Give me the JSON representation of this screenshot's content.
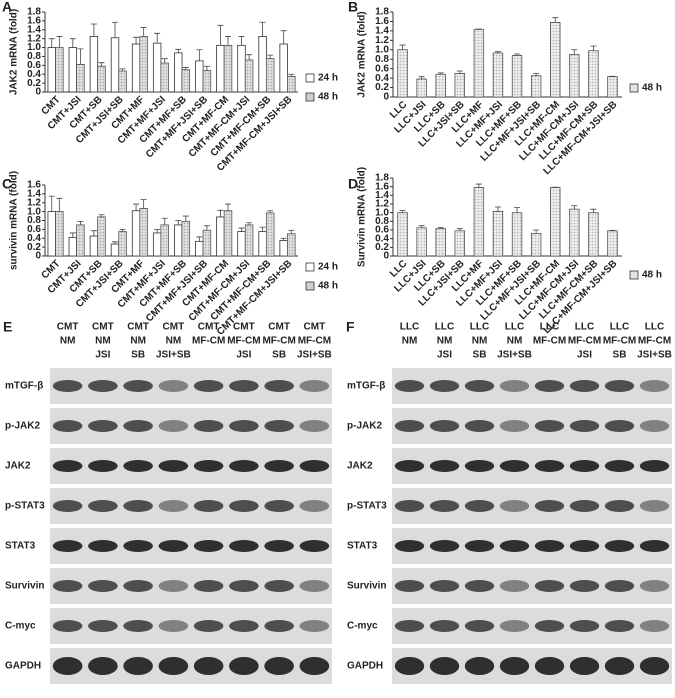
{
  "chart_data": [
    {
      "type": "bar",
      "panel": "A",
      "y_label": "JAK2 mRNA (fold)",
      "categories": [
        "CMT",
        "CMT+JSI",
        "CMT+SB",
        "CMT+JSI+SB",
        "CMT+MF",
        "CMT+MF+JSI",
        "CMT+MF+SB",
        "CMT+MF+JSI+SB",
        "CMT+MF-CM",
        "CMT+MF-CM+JSI",
        "CMT+MF-CM+SB",
        "CMT+MF-CM+JSI+SB"
      ],
      "series": [
        {
          "name": "24 h",
          "color": "#ffffff",
          "values": [
            1.0,
            1.0,
            1.25,
            1.22,
            1.08,
            1.1,
            0.88,
            0.7,
            1.05,
            1.05,
            1.25,
            1.08
          ],
          "errors": [
            0.2,
            0.2,
            0.28,
            0.35,
            0.15,
            0.22,
            0.08,
            0.25,
            0.45,
            0.2,
            0.32,
            0.3
          ]
        },
        {
          "name": "48 h",
          "color": "#cfcfcf",
          "values": [
            1.0,
            0.62,
            0.58,
            0.47,
            1.25,
            0.65,
            0.5,
            0.48,
            1.05,
            0.72,
            0.75,
            0.35
          ],
          "errors": [
            0.25,
            0.35,
            0.08,
            0.05,
            0.2,
            0.1,
            0.05,
            0.1,
            0.2,
            0.12,
            0.08,
            0.05
          ]
        }
      ],
      "ylim": [
        0,
        1.8
      ],
      "yticks": [
        0,
        {
          "value": 0.2,
          "label": "0.2"
        },
        {
          "value": 0.4,
          "label": "0.4"
        },
        {
          "value": 0.6,
          "label": "0.6"
        },
        {
          "value": 0.8,
          "label": "0.8"
        },
        {
          "value": 1,
          "label": "1.0"
        },
        {
          "value": 1.2,
          "label": "1.2"
        },
        {
          "value": 1.4,
          "label": "1.4"
        },
        {
          "value": 1.6,
          "label": "1.6"
        },
        {
          "value": 1.8,
          "label": "1.8"
        }
      ]
    },
    {
      "type": "bar",
      "panel": "B",
      "y_label": "JAK2 mRNA (fold)",
      "categories": [
        "LLC",
        "LLC+JSI",
        "LLC+SB",
        "LLC+JSI+SB",
        "LLC+MF",
        "LLC+MF+JSI",
        "LLC+MF+SB",
        "LLC+MF+JSI+SB",
        "LLC+MF-CM",
        "LLC+MF-CM+JSI",
        "LLC+MF-CM+SB",
        "LLC+MF-CM+JSI+SB"
      ],
      "series": [
        {
          "name": "48 h",
          "color": "#e3e3e3",
          "values": [
            1.0,
            0.38,
            0.48,
            0.5,
            1.43,
            0.93,
            0.88,
            0.45,
            1.58,
            0.9,
            0.98,
            0.43
          ],
          "errors": [
            0.1,
            0.05,
            0.03,
            0.05,
            0.01,
            0.03,
            0.03,
            0.05,
            0.1,
            0.1,
            0.1,
            0.01
          ]
        }
      ],
      "ylim": [
        0,
        1.8
      ],
      "yticks": [
        0,
        {
          "value": 0.2,
          "label": "0.2"
        },
        {
          "value": 0.4,
          "label": "0.4"
        },
        {
          "value": 0.6,
          "label": "0.6"
        },
        {
          "value": 0.8,
          "label": "0.8"
        },
        {
          "value": 1,
          "label": "1.0"
        },
        {
          "value": 1.2,
          "label": "1.2"
        },
        {
          "value": 1.4,
          "label": "1.4"
        },
        {
          "value": 1.6,
          "label": "1.6"
        },
        {
          "value": 1.8,
          "label": "1.8"
        }
      ]
    },
    {
      "type": "bar",
      "panel": "C",
      "y_label": "survivin mRNA (fold)",
      "categories": [
        "CMT",
        "CMT+JSI",
        "CMT+SB",
        "CMT+JSI+SB",
        "CMT+MF",
        "CMT+MF+JSI",
        "CMT+MF+SB",
        "CMT+MF+JSI+SB",
        "CMT+MF-CM",
        "CMT+MF-CM+JSI",
        "CMT+MF-CM+SB",
        "CMT+MF-CM+JSI+SB"
      ],
      "series": [
        {
          "name": "24 h",
          "color": "#ffffff",
          "values": [
            1.0,
            0.42,
            0.45,
            0.27,
            1.02,
            0.52,
            0.7,
            0.33,
            0.88,
            0.55,
            0.55,
            0.35
          ],
          "errors": [
            0.35,
            0.1,
            0.12,
            0.05,
            0.15,
            0.08,
            0.1,
            0.1,
            0.15,
            0.08,
            0.1,
            0.05
          ]
        },
        {
          "name": "48 h",
          "color": "#cfcfcf",
          "values": [
            1.0,
            0.7,
            0.88,
            0.55,
            1.07,
            0.7,
            0.78,
            0.58,
            1.02,
            0.7,
            0.97,
            0.5
          ],
          "errors": [
            0.3,
            0.08,
            0.05,
            0.05,
            0.2,
            0.15,
            0.12,
            0.1,
            0.15,
            0.05,
            0.05,
            0.08
          ]
        }
      ],
      "ylim": [
        0,
        1.6
      ],
      "yticks": [
        0,
        {
          "value": 0.2,
          "label": "0.2"
        },
        {
          "value": 0.4,
          "label": "0.4"
        },
        {
          "value": 0.6,
          "label": "0.6"
        },
        {
          "value": 0.8,
          "label": "0.8"
        },
        {
          "value": 1,
          "label": "1.0"
        },
        {
          "value": 1.2,
          "label": "1.2"
        },
        {
          "value": 1.4,
          "label": "1.4"
        },
        {
          "value": 1.6,
          "label": "1.6"
        }
      ]
    },
    {
      "type": "bar",
      "panel": "D",
      "y_label": "Survivin mRNA (fold)",
      "categories": [
        "LLC",
        "LLC+JSI",
        "LLC+SB",
        "LLC+JSI+SB",
        "LLC+MF",
        "LLC+MF+JSI",
        "LLC+MF+SB",
        "LLC+MF+JSI+SB",
        "LLC+MF-CM",
        "LLC+MF-CM+JSI",
        "LLC+MF-CM+SB",
        "LLC+MF-CM+JSI+SB"
      ],
      "series": [
        {
          "name": "48 h",
          "color": "#e3e3e3",
          "values": [
            1.0,
            0.65,
            0.63,
            0.58,
            1.58,
            1.03,
            1.0,
            0.52,
            1.58,
            1.08,
            1.0,
            0.58
          ],
          "errors": [
            0.05,
            0.05,
            0.03,
            0.05,
            0.08,
            0.1,
            0.12,
            0.08,
            0.01,
            0.08,
            0.08,
            0.01
          ]
        }
      ],
      "ylim": [
        0,
        1.8
      ],
      "yticks": [
        0,
        {
          "value": 0.2,
          "label": "0.2"
        },
        {
          "value": 0.4,
          "label": "0.4"
        },
        {
          "value": 0.6,
          "label": "0.6"
        },
        {
          "value": 0.8,
          "label": "0.8"
        },
        {
          "value": 1,
          "label": "1.0"
        },
        {
          "value": 1.2,
          "label": "1.2"
        },
        {
          "value": 1.4,
          "label": "1.4"
        },
        {
          "value": 1.6,
          "label": "1.6"
        },
        {
          "value": 1.8,
          "label": "1.8"
        }
      ]
    }
  ],
  "blots": [
    {
      "panel": "E",
      "columns": [
        [
          "CMT",
          "NM"
        ],
        [
          "CMT",
          "NM",
          "JSI"
        ],
        [
          "CMT",
          "NM",
          "SB"
        ],
        [
          "CMT",
          "NM",
          "JSI+SB"
        ],
        [
          "CMT",
          "MF-CM"
        ],
        [
          "CMT",
          "MF-CM",
          "JSI"
        ],
        [
          "CMT",
          "MF-CM",
          "SB"
        ],
        [
          "CMT",
          "MF-CM",
          "JSI+SB"
        ]
      ],
      "rows": [
        "mTGF-β",
        "p-JAK2",
        "JAK2",
        "p-STAT3",
        "STAT3",
        "Survivin",
        "C-myc",
        "GAPDH"
      ]
    },
    {
      "panel": "F",
      "columns": [
        [
          "LLC",
          "NM"
        ],
        [
          "LLC",
          "NM",
          "JSI"
        ],
        [
          "LLC",
          "NM",
          "SB"
        ],
        [
          "LLC",
          "NM",
          "JSI+SB"
        ],
        [
          "LLC",
          "MF-CM"
        ],
        [
          "LLC",
          "MF-CM",
          "JSI"
        ],
        [
          "LLC",
          "MF-CM",
          "SB"
        ],
        [
          "LLC",
          "MF-CM",
          "JSI+SB"
        ]
      ],
      "rows": [
        "mTGF-β",
        "p-JAK2",
        "JAK2",
        "p-STAT3",
        "STAT3",
        "Survivin",
        "C-myc",
        "GAPDH"
      ]
    }
  ]
}
